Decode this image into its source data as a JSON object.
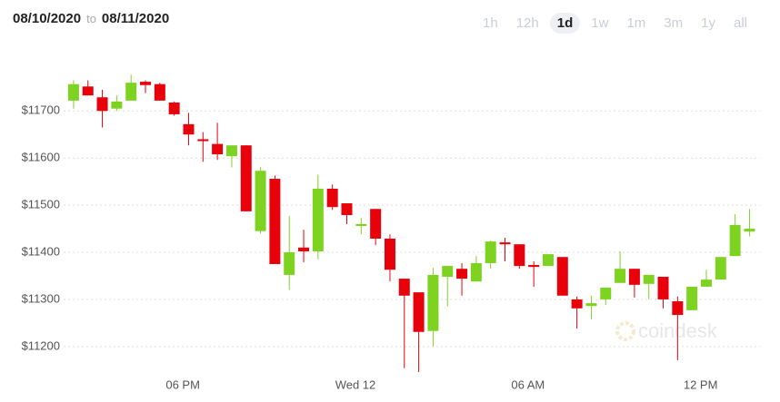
{
  "header": {
    "start": "08/10/2020",
    "to": "to",
    "end": "08/11/2020"
  },
  "ranges": {
    "options": [
      "1h",
      "12h",
      "1d",
      "1w",
      "1m",
      "3m",
      "1y",
      "all"
    ],
    "active": 2
  },
  "watermark": "coindesk",
  "chart_data": {
    "type": "candlestick",
    "categories": [
      null,
      null,
      null,
      null,
      null,
      null,
      null,
      "06 PM",
      null,
      null,
      null,
      null,
      null,
      null,
      null,
      null,
      null,
      null,
      null,
      "Wed 12",
      null,
      null,
      null,
      null,
      null,
      null,
      null,
      null,
      null,
      null,
      null,
      "06 AM",
      null,
      null,
      null,
      null,
      null,
      null,
      null,
      null,
      null,
      null,
      null,
      "12 PM",
      null,
      null,
      null,
      null
    ],
    "open": [
      11722,
      11752,
      11729,
      11705,
      11722,
      11762,
      11757,
      11718,
      11672,
      11640,
      11630,
      11604,
      11627,
      11445,
      11556,
      11352,
      11410,
      11402,
      11535,
      11504,
      11456,
      11492,
      11429,
      11344,
      11315,
      11233,
      11348,
      11365,
      11338,
      11377,
      11421,
      11417,
      11373,
      11371,
      11390,
      11300,
      11286,
      11300,
      11335,
      11365,
      11333,
      11348,
      11296,
      11277,
      11327,
      11342,
      11392,
      11444
    ],
    "high": [
      11765,
      11765,
      11745,
      11733,
      11777,
      11765,
      11760,
      11720,
      11696,
      11655,
      11675,
      11627,
      11627,
      11581,
      11563,
      11477,
      11448,
      11565,
      11544,
      11504,
      11473,
      11492,
      11438,
      11344,
      11315,
      11367,
      11371,
      11377,
      11392,
      11425,
      11431,
      11417,
      11381,
      11396,
      11390,
      11306,
      11308,
      11325,
      11402,
      11365,
      11352,
      11348,
      11306,
      11327,
      11363,
      11390,
      11481,
      11492
    ],
    "low": [
      11705,
      11733,
      11665,
      11700,
      11722,
      11738,
      11722,
      11690,
      11627,
      11592,
      11596,
      11580,
      11487,
      11440,
      11375,
      11320,
      11379,
      11385,
      11490,
      11460,
      11438,
      11415,
      11338,
      11154,
      11146,
      11200,
      11285,
      11308,
      11338,
      11365,
      11381,
      11365,
      11327,
      11371,
      11308,
      11238,
      11258,
      11288,
      11335,
      11304,
      11300,
      11281,
      11171,
      11277,
      11327,
      11342,
      11392,
      11434
    ],
    "close": [
      11757,
      11733,
      11700,
      11720,
      11760,
      11755,
      11722,
      11693,
      11650,
      11636,
      11608,
      11627,
      11487,
      11573,
      11375,
      11400,
      11402,
      11535,
      11496,
      11479,
      11460,
      11429,
      11363,
      11308,
      11231,
      11352,
      11371,
      11344,
      11377,
      11423,
      11417,
      11371,
      11369,
      11396,
      11308,
      11281,
      11292,
      11325,
      11365,
      11331,
      11352,
      11300,
      11267,
      11327,
      11342,
      11390,
      11458,
      11450
    ],
    "up_color": "#7ed321",
    "down_color": "#e8000b",
    "ylim": [
      11140,
      11820
    ],
    "yticks": [
      {
        "value": 11200,
        "label": "$11200"
      },
      {
        "value": 11300,
        "label": "$11300"
      },
      {
        "value": 11400,
        "label": "$11400"
      },
      {
        "value": 11500,
        "label": "$11500"
      },
      {
        "value": 11600,
        "label": "$11600"
      },
      {
        "value": 11700,
        "label": "$11700"
      }
    ],
    "grid": true
  }
}
